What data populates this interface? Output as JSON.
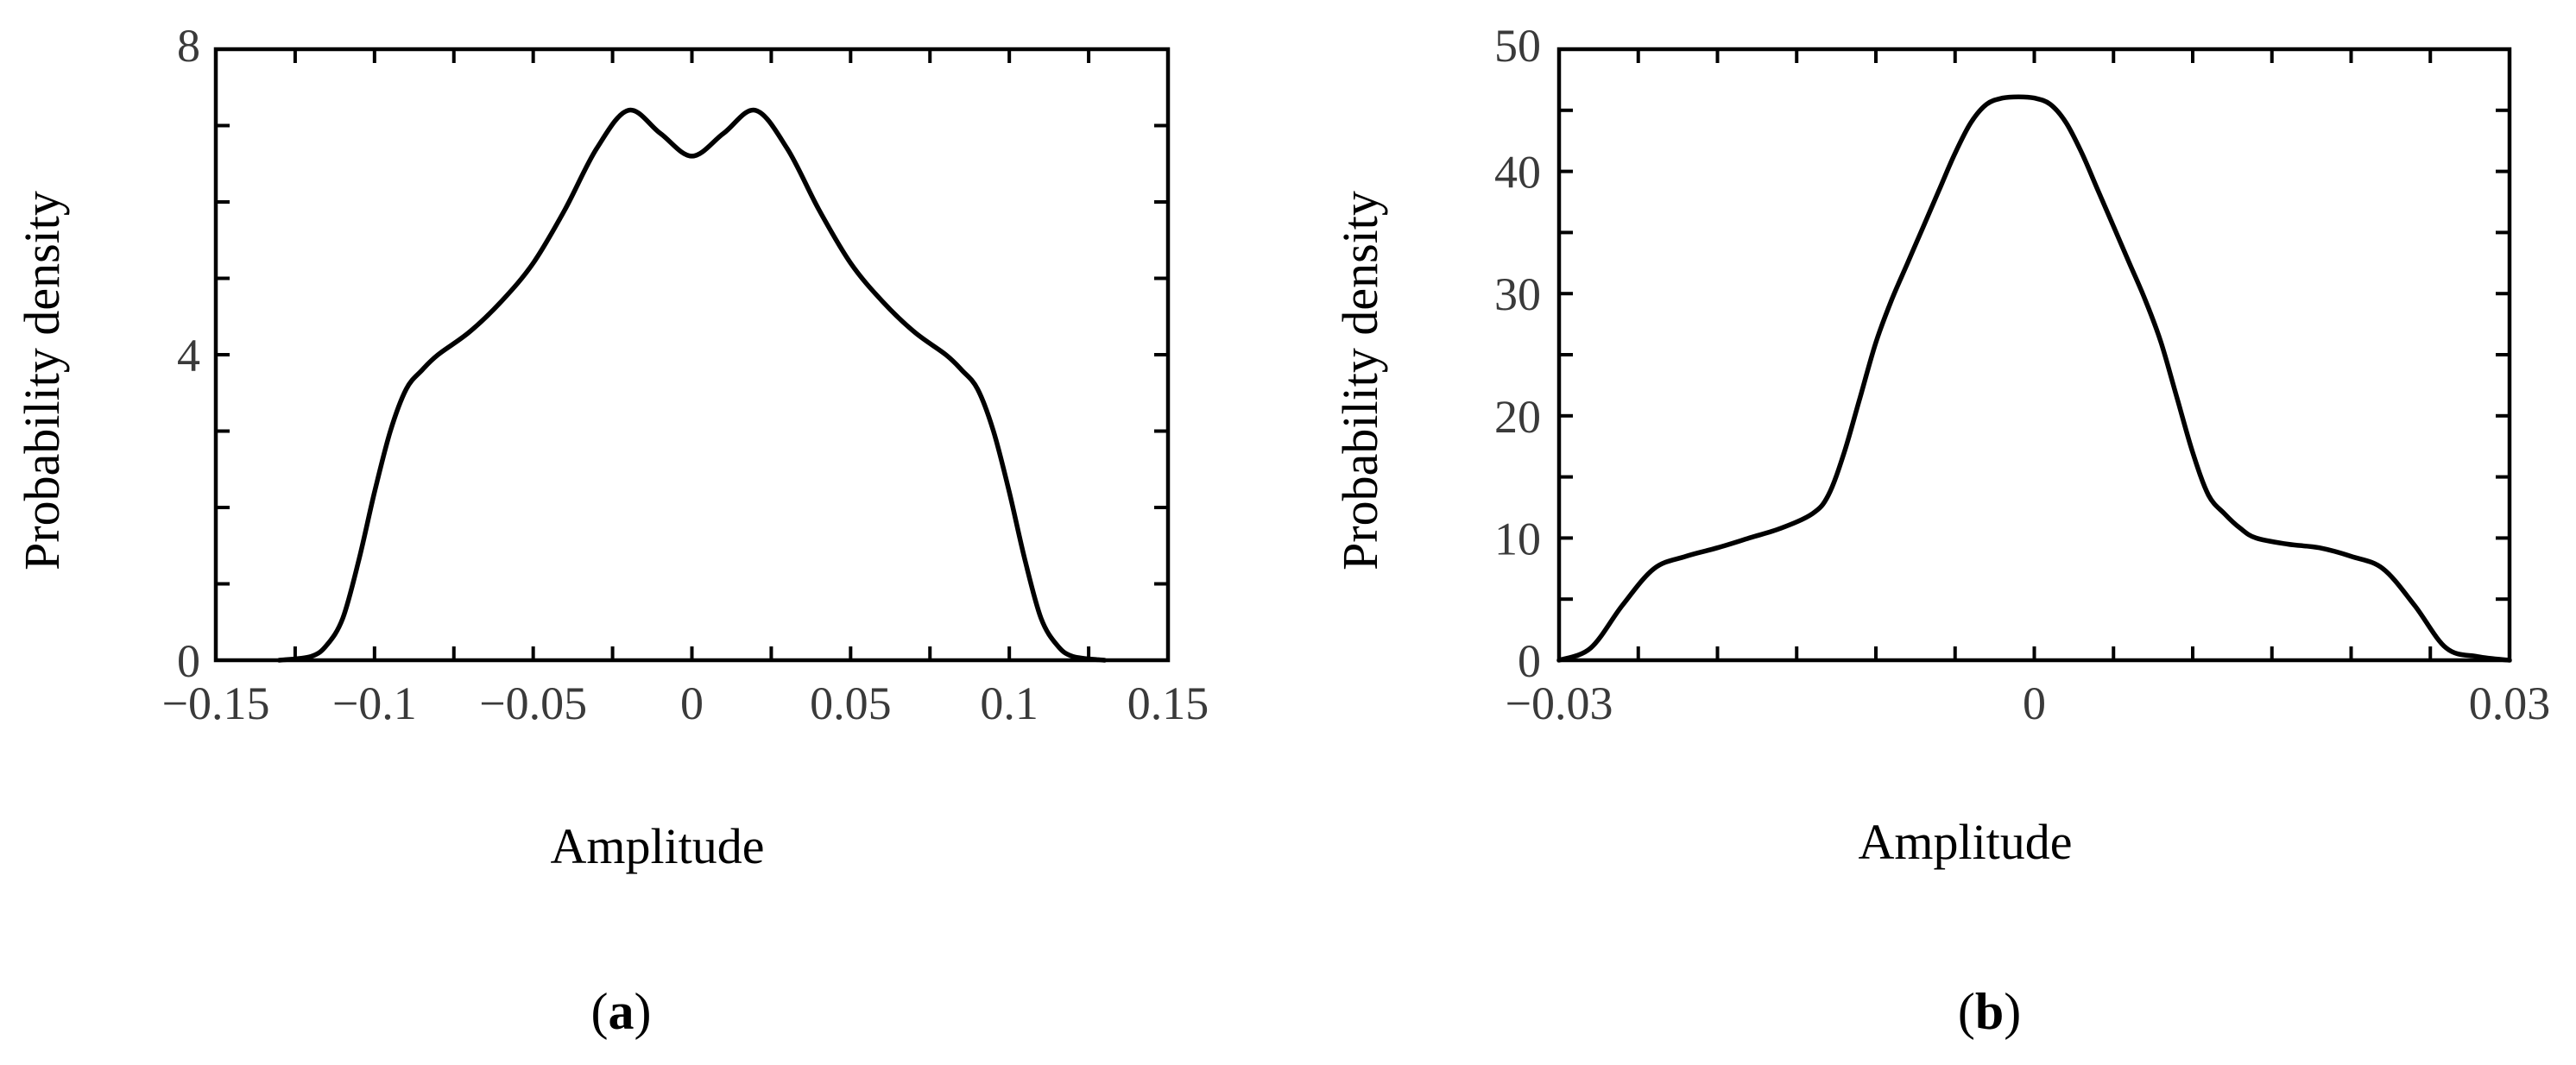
{
  "chart_data": [
    {
      "type": "line",
      "panel_label": "a",
      "xlabel": "Amplitude",
      "ylabel": "Probability density",
      "xlim": [
        -0.15,
        0.15
      ],
      "ylim": [
        0,
        8
      ],
      "xticks": [
        -0.15,
        -0.1,
        -0.05,
        0,
        0.05,
        0.1,
        0.15
      ],
      "xtick_labels": [
        "−0.15",
        "−0.1",
        "−0.05",
        "0",
        "0.05",
        "0.1",
        "0.15"
      ],
      "yticks": [
        0,
        4,
        8
      ],
      "ytick_labels": [
        "0",
        "4",
        "8"
      ],
      "grid": false,
      "series": [
        {
          "x": [
            -0.13,
            -0.12,
            -0.115,
            -0.11,
            -0.105,
            -0.1,
            -0.095,
            -0.09,
            -0.085,
            -0.08,
            -0.07,
            -0.06,
            -0.05,
            -0.04,
            -0.03,
            -0.02,
            -0.01,
            0,
            0.01,
            0.02,
            0.03,
            0.04,
            0.05,
            0.06,
            0.07,
            0.08,
            0.085,
            0.09,
            0.095,
            0.1,
            0.105,
            0.11,
            0.115,
            0.12,
            0.13
          ],
          "y": [
            0,
            0.05,
            0.2,
            0.55,
            1.3,
            2.2,
            3.0,
            3.55,
            3.8,
            4.0,
            4.3,
            4.7,
            5.2,
            5.9,
            6.7,
            7.2,
            6.9,
            6.6,
            6.9,
            7.2,
            6.7,
            5.9,
            5.2,
            4.7,
            4.3,
            4.0,
            3.8,
            3.55,
            3.0,
            2.2,
            1.3,
            0.55,
            0.2,
            0.05,
            0
          ]
        }
      ]
    },
    {
      "type": "line",
      "panel_label": "b",
      "xlabel": "Amplitude",
      "ylabel": "Probability density",
      "xlim": [
        -0.03,
        0.03
      ],
      "ylim": [
        0,
        50
      ],
      "xticks": [
        -0.03,
        0,
        0.03
      ],
      "xtick_labels": [
        "−0.03",
        "0",
        "0.03"
      ],
      "yticks": [
        0,
        10,
        20,
        30,
        40,
        50
      ],
      "ytick_labels": [
        "0",
        "10",
        "20",
        "30",
        "40",
        "50"
      ],
      "grid": false,
      "series": [
        {
          "x": [
            -0.03,
            -0.028,
            -0.026,
            -0.024,
            -0.022,
            -0.02,
            -0.018,
            -0.016,
            -0.014,
            -0.013,
            -0.012,
            -0.011,
            -0.01,
            -0.009,
            -0.008,
            -0.007,
            -0.006,
            -0.005,
            -0.004,
            -0.003,
            -0.002,
            -0.001,
            0,
            0.001,
            0.002,
            0.003,
            0.004,
            0.005,
            0.006,
            0.007,
            0.008,
            0.009,
            0.01,
            0.011,
            0.012,
            0.013,
            0.014,
            0.016,
            0.018,
            0.02,
            0.022,
            0.024,
            0.026,
            0.028,
            0.03
          ],
          "y": [
            0,
            1.0,
            4.5,
            7.5,
            8.5,
            9.2,
            10.0,
            10.8,
            12.0,
            13.5,
            17.0,
            21.5,
            26.0,
            29.5,
            32.5,
            35.5,
            38.5,
            41.5,
            44.0,
            45.5,
            46.0,
            46.1,
            46.0,
            45.5,
            44.0,
            41.5,
            38.5,
            35.5,
            32.5,
            29.5,
            26.0,
            21.5,
            17.0,
            13.5,
            12.0,
            10.8,
            10.0,
            9.5,
            9.2,
            8.5,
            7.5,
            4.5,
            1.0,
            0.3,
            0
          ]
        }
      ]
    }
  ]
}
